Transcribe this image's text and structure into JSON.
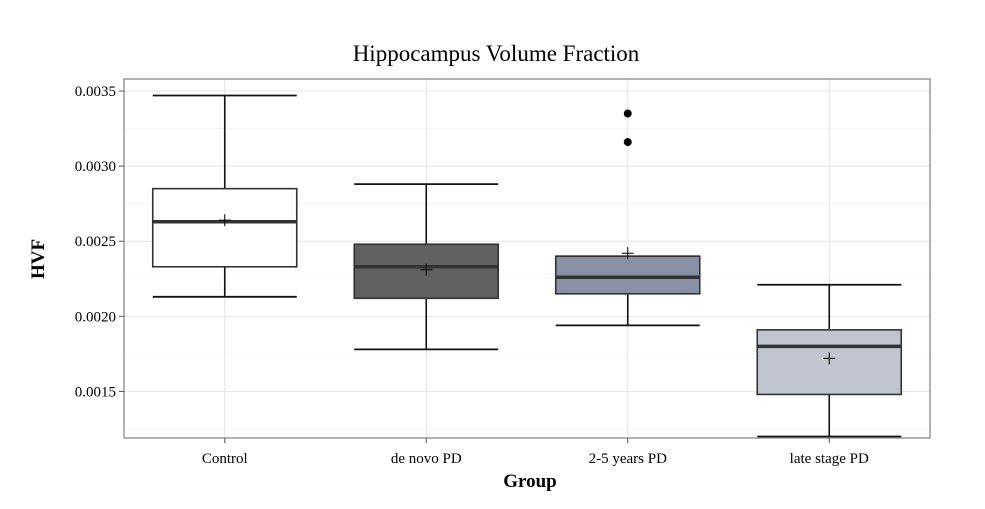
{
  "chart_data": {
    "type": "box",
    "title": "Hippocampus Volume Fraction",
    "xlabel": "Group",
    "ylabel": "HVF",
    "ylim": [
      0.00119,
      0.00358
    ],
    "y_ticks": [
      "0.0015",
      "0.0020",
      "0.0025",
      "0.0030",
      "0.0035"
    ],
    "y_tick_values": [
      0.0015,
      0.002,
      0.0025,
      0.003,
      0.0035
    ],
    "y_minor_values": [
      0.00125,
      0.00175,
      0.00225,
      0.00275,
      0.00325
    ],
    "grid": true,
    "categories": [
      "Control",
      "de novo PD",
      "2-5 years PD",
      "late stage PD"
    ],
    "groups": [
      {
        "name": "Control",
        "whisker_low": 0.00213,
        "q1": 0.00233,
        "median": 0.00263,
        "q3": 0.00285,
        "whisker_high": 0.00347,
        "mean": 0.00264,
        "outliers": [],
        "fill": "#ffffff"
      },
      {
        "name": "de novo PD",
        "whisker_low": 0.00178,
        "q1": 0.00212,
        "median": 0.00233,
        "q3": 0.00248,
        "whisker_high": 0.00288,
        "mean": 0.00231,
        "outliers": [],
        "fill": "#606060"
      },
      {
        "name": "2-5 years PD",
        "whisker_low": 0.00194,
        "q1": 0.00215,
        "median": 0.00226,
        "q3": 0.0024,
        "whisker_high": 0.0024,
        "whisker_high_cap": 0.0024,
        "mean": 0.00242,
        "outliers": [
          0.00316,
          0.00335
        ],
        "fill": "#8891a6"
      },
      {
        "name": "late stage PD",
        "whisker_low": 0.0012,
        "q1": 0.00148,
        "median": 0.0018,
        "q3": 0.00191,
        "whisker_high": 0.00221,
        "mean": 0.00172,
        "outliers": [],
        "fill": "#c0c5cf"
      }
    ]
  }
}
